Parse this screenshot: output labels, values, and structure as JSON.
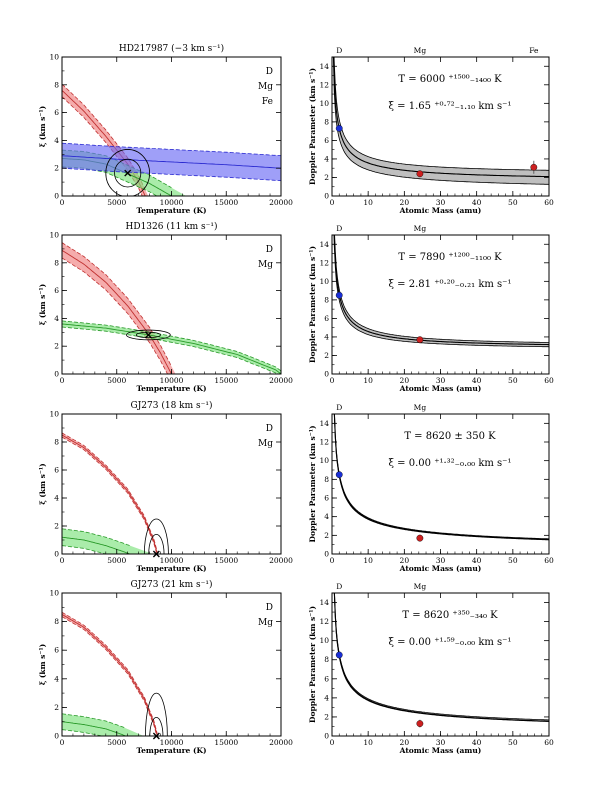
{
  "chart_data": [
    {
      "type": "contour",
      "title": "HD217987 (−3 km s⁻¹)",
      "xlabel": "Temperature (K)",
      "ylabel": "ξ (km s⁻¹)",
      "xlim": [
        0,
        20000
      ],
      "ylim": [
        0,
        10
      ],
      "xticks": [
        0,
        5000,
        10000,
        15000,
        20000
      ],
      "yticks": [
        0,
        2,
        4,
        6,
        8,
        10
      ],
      "legend": [
        {
          "label": "D",
          "color": "#e84848"
        },
        {
          "label": "Mg",
          "color": "#2ecc2e"
        },
        {
          "label": "Fe",
          "color": "#3a3af0"
        }
      ],
      "best_fit": {
        "T": 6000,
        "xi": 1.65
      },
      "bands": [
        {
          "name": "D",
          "color": "#f08080",
          "center": [
            [
              0,
              7.6
            ],
            [
              2000,
              6.1
            ],
            [
              4000,
              4.3
            ],
            [
              6000,
              2.3
            ],
            [
              7000,
              1.0
            ],
            [
              7600,
              0.0
            ]
          ],
          "halfwidth": 0.45
        },
        {
          "name": "Mg",
          "color": "#7ce27c",
          "center": [
            [
              0,
              2.7
            ],
            [
              2000,
              2.6
            ],
            [
              4000,
              2.3
            ],
            [
              6000,
              1.6
            ],
            [
              8000,
              0.9
            ],
            [
              10000,
              0.0
            ]
          ],
          "halfwidth": 0.6
        },
        {
          "name": "Fe",
          "color": "#6b6bf5",
          "center": [
            [
              0,
              2.9
            ],
            [
              5000,
              2.65
            ],
            [
              10000,
              2.45
            ],
            [
              15000,
              2.25
            ],
            [
              20000,
              2.0
            ]
          ],
          "halfwidth": 0.9
        }
      ],
      "contours": [
        {
          "cx": 6000,
          "cy": 1.65,
          "rx": 1200,
          "ry": 1.0
        },
        {
          "cx": 6000,
          "cy": 1.65,
          "rx": 2000,
          "ry": 1.7
        }
      ]
    },
    {
      "type": "line",
      "xlabel": "Atomic Mass (amu)",
      "ylabel": "Doppler Parameter (km s⁻¹)",
      "xlim": [
        0,
        60
      ],
      "ylim": [
        0,
        15
      ],
      "xticks": [
        0,
        10,
        20,
        30,
        40,
        50,
        60
      ],
      "yticks": [
        0,
        2,
        4,
        6,
        8,
        10,
        12,
        14
      ],
      "top_labels": [
        {
          "mass": 2,
          "label": "D"
        },
        {
          "mass": 24.3,
          "label": "Mg"
        },
        {
          "mass": 55.8,
          "label": "Fe"
        }
      ],
      "T_text": "T = 6000 ⁺¹⁵⁰⁰₋₁₄₀₀ K",
      "xi_text": "ξ = 1.65 ⁺⁰·⁷²₋₁.₁₀ km s⁻¹",
      "T": 6000,
      "xi": 1.65,
      "band_T": [
        4600,
        7500
      ],
      "band_xi": [
        0.55,
        2.37
      ],
      "points": [
        {
          "mass": 2.0,
          "b": 7.3,
          "err": 0.3,
          "color": "#1a2fd6"
        },
        {
          "mass": 24.3,
          "b": 2.4,
          "err": 0.3,
          "color": "#cc2020"
        },
        {
          "mass": 55.8,
          "b": 3.1,
          "err": 0.7,
          "color": "#cc2020"
        }
      ]
    },
    {
      "type": "contour",
      "title": "HD1326 (11 km s⁻¹)",
      "xlabel": "Temperature (K)",
      "ylabel": "ξ (km s⁻¹)",
      "xlim": [
        0,
        20000
      ],
      "ylim": [
        0,
        10
      ],
      "xticks": [
        0,
        5000,
        10000,
        15000,
        20000
      ],
      "yticks": [
        0,
        2,
        4,
        6,
        8,
        10
      ],
      "legend": [
        {
          "label": "D",
          "color": "#e84848"
        },
        {
          "label": "Mg",
          "color": "#2ecc2e"
        }
      ],
      "best_fit": {
        "T": 7890,
        "xi": 2.81
      },
      "bands": [
        {
          "name": "D",
          "color": "#f08080",
          "center": [
            [
              0,
              8.9
            ],
            [
              2000,
              7.9
            ],
            [
              4000,
              6.6
            ],
            [
              6000,
              4.9
            ],
            [
              8000,
              2.8
            ],
            [
              9000,
              1.5
            ],
            [
              10000,
              0.0
            ]
          ],
          "halfwidth": 0.55
        },
        {
          "name": "Mg",
          "color": "#7ce27c",
          "center": [
            [
              0,
              3.6
            ],
            [
              4000,
              3.3
            ],
            [
              8000,
              2.8
            ],
            [
              12000,
              2.2
            ],
            [
              16000,
              1.4
            ],
            [
              19500,
              0.3
            ],
            [
              20000,
              0.0
            ]
          ],
          "halfwidth": 0.22
        }
      ],
      "contours": [
        {
          "cx": 7890,
          "cy": 2.81,
          "rx": 1100,
          "ry": 0.2
        },
        {
          "cx": 7890,
          "cy": 2.81,
          "rx": 2000,
          "ry": 0.35
        }
      ]
    },
    {
      "type": "line",
      "xlabel": "Atomic Mass (amu)",
      "ylabel": "Doppler Parameter (km s⁻¹)",
      "xlim": [
        0,
        60
      ],
      "ylim": [
        0,
        15
      ],
      "xticks": [
        0,
        10,
        20,
        30,
        40,
        50,
        60
      ],
      "yticks": [
        0,
        2,
        4,
        6,
        8,
        10,
        12,
        14
      ],
      "top_labels": [
        {
          "mass": 2,
          "label": "D"
        },
        {
          "mass": 24.3,
          "label": "Mg"
        }
      ],
      "T_text": "T = 7890 ⁺¹²⁰⁰₋₁₁₀₀ K",
      "xi_text": "ξ = 2.81 ⁺⁰·²⁰₋₀.₂₁ km s⁻¹",
      "T": 7890,
      "xi": 2.81,
      "band_T": [
        6800,
        9000
      ],
      "band_xi": [
        2.6,
        3.01
      ],
      "points": [
        {
          "mass": 2.0,
          "b": 8.5,
          "err": 0.3,
          "color": "#1a2fd6"
        },
        {
          "mass": 24.3,
          "b": 3.7,
          "err": 0.1,
          "color": "#cc2020"
        }
      ]
    },
    {
      "type": "contour",
      "title": "GJ273 (18 km s⁻¹)",
      "xlabel": "Temperature (K)",
      "ylabel": "ξ (km s⁻¹)",
      "xlim": [
        0,
        20000
      ],
      "ylim": [
        0,
        10
      ],
      "xticks": [
        0,
        5000,
        10000,
        15000,
        20000
      ],
      "yticks": [
        0,
        2,
        4,
        6,
        8,
        10
      ],
      "legend": [
        {
          "label": "D",
          "color": "#e84848"
        },
        {
          "label": "Mg",
          "color": "#2ecc2e"
        }
      ],
      "best_fit": {
        "T": 8620,
        "xi": 0.0
      },
      "bands": [
        {
          "name": "D",
          "color": "#f08080",
          "center": [
            [
              0,
              8.5
            ],
            [
              2000,
              7.6
            ],
            [
              4000,
              6.2
            ],
            [
              6000,
              4.5
            ],
            [
              7500,
              2.6
            ],
            [
              8400,
              0.9
            ],
            [
              8700,
              0.0
            ]
          ],
          "halfwidth": 0.15
        },
        {
          "name": "Mg",
          "color": "#7ce27c",
          "center": [
            [
              0,
              1.2
            ],
            [
              2000,
              1.0
            ],
            [
              4000,
              0.6
            ],
            [
              5500,
              0.2
            ],
            [
              6200,
              0.0
            ]
          ],
          "halfwidth": 0.6
        }
      ],
      "contours": [
        {
          "cx": 8620,
          "cy": 0.0,
          "rx": 700,
          "ry": 1.4
        },
        {
          "cx": 8620,
          "cy": 0.0,
          "rx": 1100,
          "ry": 2.5
        }
      ]
    },
    {
      "type": "line",
      "xlabel": "Atomic Mass (amu)",
      "ylabel": "Doppler Parameter (km s⁻¹)",
      "xlim": [
        0,
        60
      ],
      "ylim": [
        0,
        15
      ],
      "xticks": [
        0,
        10,
        20,
        30,
        40,
        50,
        60
      ],
      "yticks": [
        0,
        2,
        4,
        6,
        8,
        10,
        12,
        14
      ],
      "top_labels": [
        {
          "mass": 2,
          "label": "D"
        },
        {
          "mass": 24.3,
          "label": "Mg"
        }
      ],
      "T_text": "T = 8620 ± 350 K",
      "xi_text": "ξ = 0.00 ⁺¹·³²₋₀.₀₀ km s⁻¹",
      "T": 8620,
      "xi": 0.0,
      "band_T": [
        8270,
        8970
      ],
      "band_xi": [
        0.0,
        0.4
      ],
      "points": [
        {
          "mass": 2.0,
          "b": 8.5,
          "err": 0.2,
          "color": "#1a2fd6"
        },
        {
          "mass": 24.3,
          "b": 1.7,
          "err": 0.35,
          "color": "#cc2020"
        }
      ]
    },
    {
      "type": "contour",
      "title": "GJ273 (21 km s⁻¹)",
      "xlabel": "Temperature (K)",
      "ylabel": "ξ (km s⁻¹)",
      "xlim": [
        0,
        20000
      ],
      "ylim": [
        0,
        10
      ],
      "xticks": [
        0,
        5000,
        10000,
        15000,
        20000
      ],
      "yticks": [
        0,
        2,
        4,
        6,
        8,
        10
      ],
      "legend": [
        {
          "label": "D",
          "color": "#e84848"
        },
        {
          "label": "Mg",
          "color": "#2ecc2e"
        }
      ],
      "best_fit": {
        "T": 8620,
        "xi": 0.0
      },
      "bands": [
        {
          "name": "D",
          "color": "#f08080",
          "center": [
            [
              0,
              8.5
            ],
            [
              2000,
              7.6
            ],
            [
              4000,
              6.2
            ],
            [
              6000,
              4.5
            ],
            [
              7500,
              2.6
            ],
            [
              8400,
              0.9
            ],
            [
              8700,
              0.0
            ]
          ],
          "halfwidth": 0.15
        },
        {
          "name": "Mg",
          "color": "#7ce27c",
          "center": [
            [
              0,
              1.0
            ],
            [
              2000,
              0.8
            ],
            [
              4000,
              0.5
            ],
            [
              5500,
              0.1
            ],
            [
              5800,
              0.0
            ]
          ],
          "halfwidth": 0.55
        }
      ],
      "contours": [
        {
          "cx": 8620,
          "cy": 0.0,
          "rx": 600,
          "ry": 1.3
        },
        {
          "cx": 8620,
          "cy": 0.0,
          "rx": 1000,
          "ry": 3.0
        }
      ]
    },
    {
      "type": "line",
      "xlabel": "Atomic Mass (amu)",
      "ylabel": "Doppler Parameter (km s⁻¹)",
      "xlim": [
        0,
        60
      ],
      "ylim": [
        0,
        15
      ],
      "xticks": [
        0,
        10,
        20,
        30,
        40,
        50,
        60
      ],
      "yticks": [
        0,
        2,
        4,
        6,
        8,
        10,
        12,
        14
      ],
      "top_labels": [
        {
          "mass": 2,
          "label": "D"
        },
        {
          "mass": 24.3,
          "label": "Mg"
        }
      ],
      "T_text": "T = 8620 ⁺³⁵⁰₋₃₄₀ K",
      "xi_text": "ξ = 0.00 ⁺¹·⁵⁹₋₀.₀₀ km s⁻¹",
      "T": 8620,
      "xi": 0.0,
      "band_T": [
        8280,
        8970
      ],
      "band_xi": [
        0.0,
        0.6
      ],
      "points": [
        {
          "mass": 2.0,
          "b": 8.5,
          "err": 0.2,
          "color": "#1a2fd6"
        },
        {
          "mass": 24.3,
          "b": 1.3,
          "err": 0.4,
          "color": "#cc2020"
        }
      ]
    }
  ]
}
